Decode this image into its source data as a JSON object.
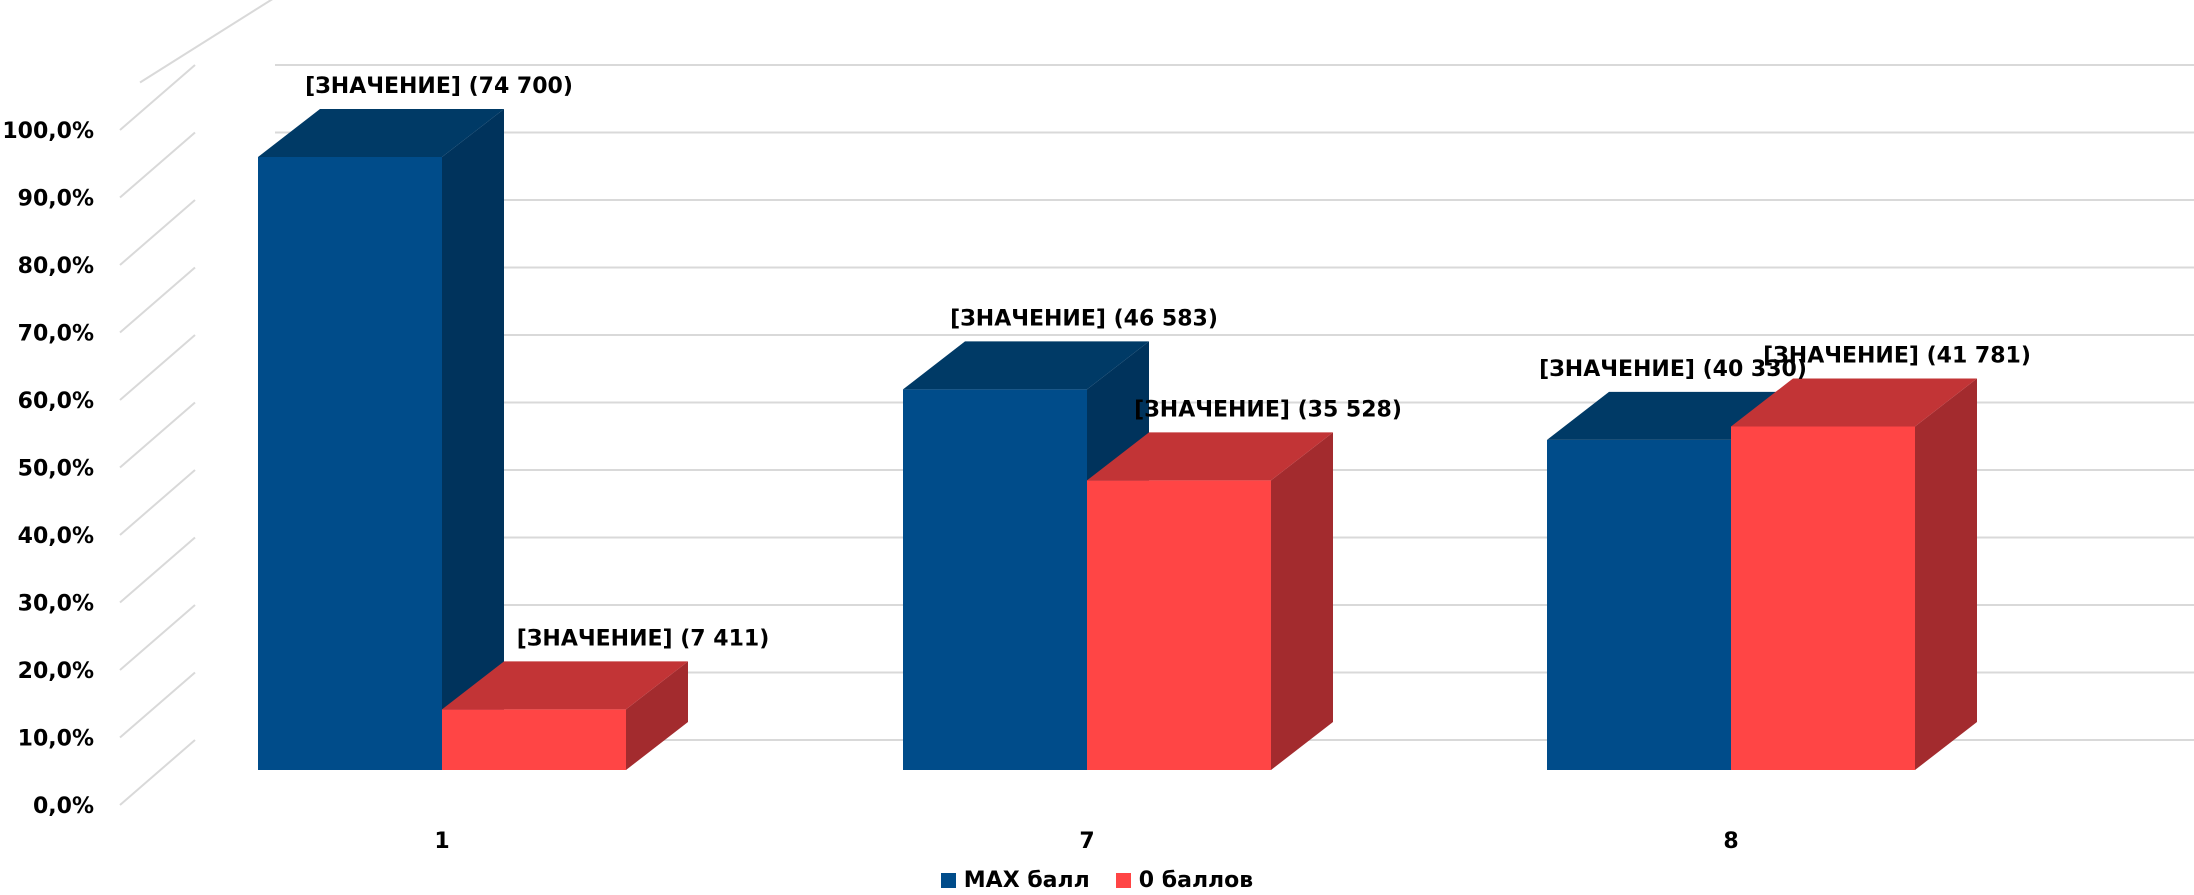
{
  "chart_data": {
    "type": "bar",
    "bar_style": "3d-clustered",
    "categories": [
      "1",
      "7",
      "8"
    ],
    "series": [
      {
        "name": "MAX балл",
        "values": [
          91.0,
          56.5,
          49.0
        ],
        "labels": [
          "[ЗНАЧЕНИЕ] (74 700)",
          "[ЗНАЧЕНИЕ] (46 583)",
          "[ЗНАЧЕНИЕ] (40 330)"
        ],
        "color": "#004C8A"
      },
      {
        "name": "0 баллов",
        "values": [
          9.0,
          43.0,
          51.0
        ],
        "labels": [
          "[ЗНАЧЕНИЕ] (7 411)",
          "[ЗНАЧЕНИЕ] (35 528)",
          "[ЗНАЧЕНИЕ] (41 781)"
        ],
        "color": "#FF4545"
      }
    ],
    "y_ticks": [
      "0,0%",
      "10,0%",
      "20,0%",
      "30,0%",
      "40,0%",
      "50,0%",
      "60,0%",
      "70,0%",
      "80,0%",
      "90,0%",
      "100,0%"
    ],
    "ylim": [
      0,
      100
    ],
    "grid": true,
    "legend_position": "bottom"
  }
}
